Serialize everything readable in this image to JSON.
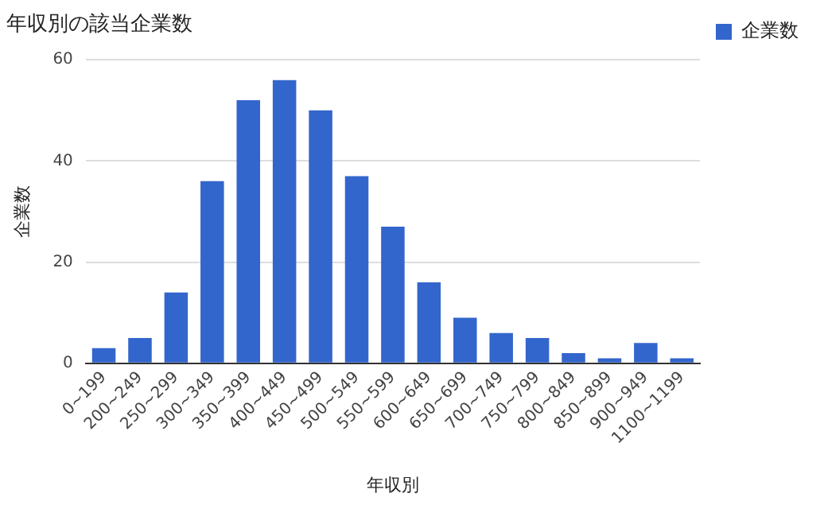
{
  "chart_data": {
    "type": "bar",
    "title": "年収別の該当企業数",
    "xlabel": "年収別",
    "ylabel": "企業数",
    "categories": [
      "0~199",
      "200~249",
      "250~299",
      "300~349",
      "350~399",
      "400~449",
      "450~499",
      "500~549",
      "550~599",
      "600~649",
      "650~699",
      "700~749",
      "750~799",
      "800~849",
      "850~899",
      "900~949",
      "1100~1199"
    ],
    "series": [
      {
        "name": "企業数",
        "color": "#3366cc",
        "values": [
          3,
          5,
          14,
          36,
          52,
          56,
          50,
          37,
          27,
          16,
          9,
          6,
          5,
          2,
          1,
          4,
          1
        ]
      }
    ],
    "ylim": [
      0,
      60
    ],
    "yticks": [
      0,
      20,
      40,
      60
    ],
    "grid": "y",
    "legend": "right"
  }
}
